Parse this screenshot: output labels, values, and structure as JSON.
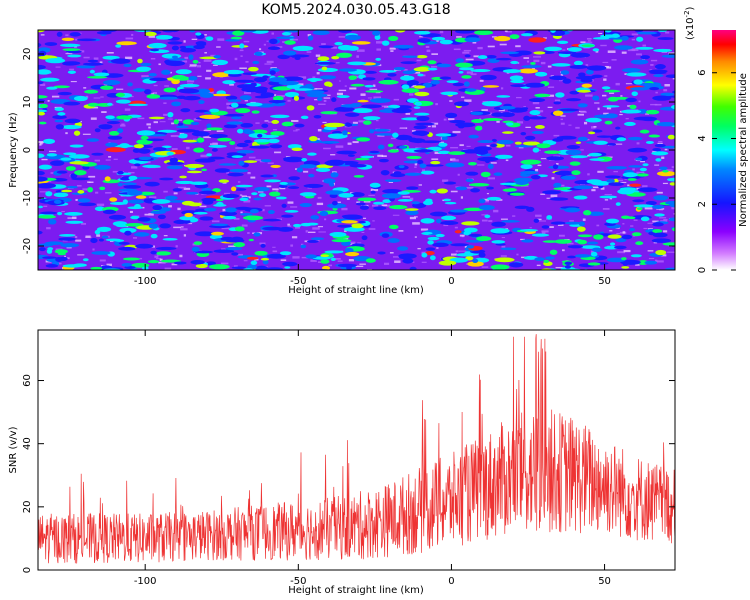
{
  "title": "KOM5.2024.030.05.43.G18",
  "chart_data": [
    {
      "type": "heatmap",
      "xlabel": "Height of straight line (km)",
      "ylabel": "Frequency (Hz)",
      "xlim": [
        -135,
        73
      ],
      "ylim": [
        -25,
        25
      ],
      "x_ticks": [
        -100,
        -50,
        0,
        50
      ],
      "y_ticks": [
        -20,
        -10,
        0,
        10,
        20
      ],
      "colorbar": {
        "label": "Normalized spectral amplitude",
        "multiplier": "(x10",
        "multiplier_exp": "-2",
        "multiplier_close": ")",
        "range": [
          0,
          7.3
        ],
        "ticks": [
          0,
          2,
          4,
          6
        ],
        "colors": [
          "#ffffff",
          "#9400d3",
          "#0000ff",
          "#00ffff",
          "#00ff00",
          "#ffff00",
          "#ff0000",
          "#ff0080"
        ]
      },
      "pattern": "dense speckle of short horizontal streaks across all frequencies; mostly blue/cyan with scattered green, yellow and occasional red spots; purple-white background texture"
    },
    {
      "type": "line",
      "xlabel": "Height of straight line (km)",
      "ylabel": "SNR (v/v)",
      "xlim": [
        -135,
        73
      ],
      "ylim": [
        0,
        76
      ],
      "x_ticks": [
        -100,
        -50,
        0,
        50
      ],
      "y_ticks": [
        0,
        20,
        40,
        60
      ],
      "series": [
        {
          "color": "#ee3333",
          "envelope_x": [
            -135,
            -120,
            -100,
            -80,
            -60,
            -40,
            -30,
            -20,
            -10,
            0,
            10,
            20,
            30,
            40,
            50,
            60,
            73
          ],
          "envelope_mean": [
            10,
            10,
            10,
            11,
            12,
            13,
            14,
            16,
            19,
            22,
            26,
            30,
            32,
            30,
            27,
            23,
            20
          ],
          "envelope_spread": [
            8,
            8,
            8,
            8,
            9,
            10,
            11,
            12,
            14,
            15,
            17,
            19,
            20,
            19,
            16,
            14,
            12
          ],
          "peak_max": 75
        }
      ]
    }
  ]
}
